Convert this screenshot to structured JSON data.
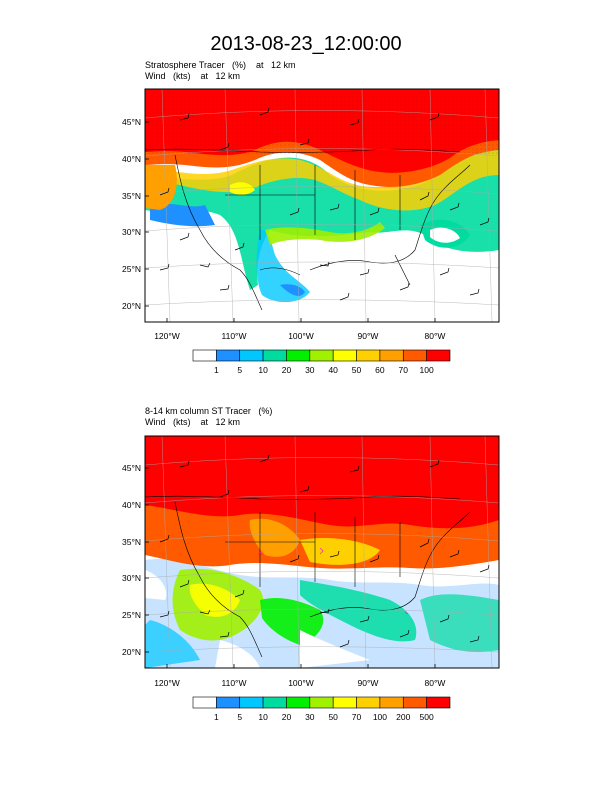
{
  "title": "2013-08-23_12:00:00",
  "panels": [
    {
      "id": "top",
      "title_line1": "Stratosphere Tracer   (%)    at   12 km",
      "title_line2": "Wind   (kts)    at   12 km",
      "lat_labels": [
        "45°N",
        "40°N",
        "35°N",
        "30°N",
        "25°N",
        "20°N"
      ],
      "lon_labels": [
        "120°W",
        "110°W",
        "100°W",
        "90°W",
        "80°W"
      ],
      "colorbar_labels": [
        "1",
        "5",
        "10",
        "20",
        "30",
        "40",
        "50",
        "60",
        "70",
        "100"
      ]
    },
    {
      "id": "bottom",
      "title_line1": "8-14 km column ST Tracer   (%)",
      "title_line2": "Wind   (kts)    at   12 km",
      "lat_labels": [
        "45°N",
        "40°N",
        "35°N",
        "30°N",
        "25°N",
        "20°N"
      ],
      "lon_labels": [
        "120°W",
        "110°W",
        "100°W",
        "90°W",
        "80°W"
      ],
      "colorbar_labels": [
        "1",
        "5",
        "10",
        "20",
        "30",
        "50",
        "70",
        "100",
        "200",
        "500"
      ]
    }
  ],
  "colorbar_colors": [
    "#ffffff",
    "#1e90ff",
    "#00c8ff",
    "#00dca0",
    "#00f000",
    "#a0f000",
    "#ffff00",
    "#ffd000",
    "#ffa000",
    "#ff5a00",
    "#ff0000"
  ]
}
